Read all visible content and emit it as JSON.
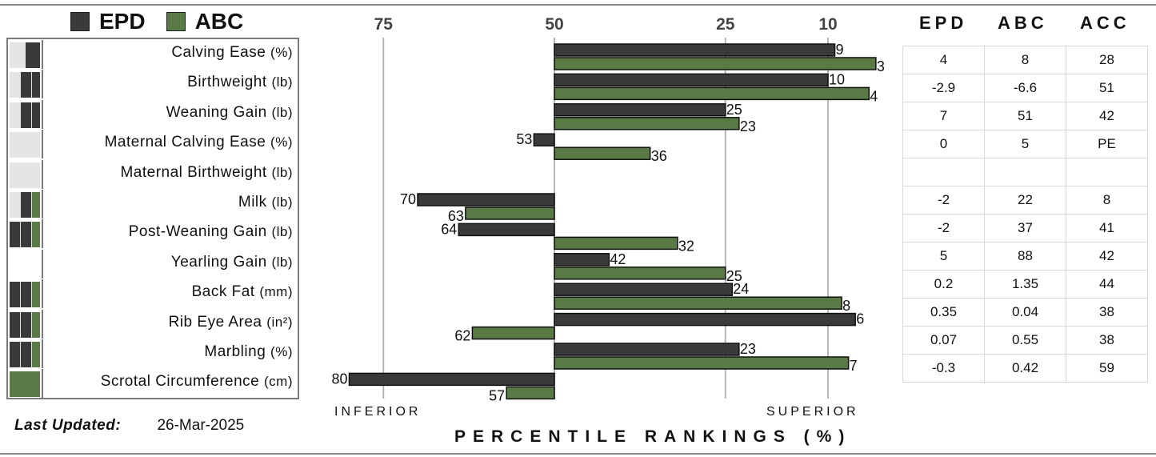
{
  "legend": [
    {
      "name": "EPD",
      "color": "#3a3a3a"
    },
    {
      "name": "ABC",
      "color": "#5a7a45"
    }
  ],
  "colors": {
    "epd": "#3a3a3a",
    "abc": "#5a7a45",
    "light": "#e4e4e4",
    "grid": "#b5b5b5"
  },
  "table": {
    "headers": [
      "EPD",
      "ABC",
      "ACC"
    ],
    "rows": [
      [
        "4",
        "8",
        "28"
      ],
      [
        "-2.9",
        "-6.6",
        "51"
      ],
      [
        "7",
        "51",
        "42"
      ],
      [
        "0",
        "5",
        "PE"
      ],
      [
        "",
        "",
        ""
      ],
      [
        "-2",
        "22",
        "8"
      ],
      [
        "-2",
        "37",
        "41"
      ],
      [
        "5",
        "88",
        "42"
      ],
      [
        "0.2",
        "1.35",
        "44"
      ],
      [
        "0.35",
        "0.04",
        "38"
      ],
      [
        "0.07",
        "0.55",
        "38"
      ],
      [
        "-0.3",
        "0.42",
        "59"
      ]
    ]
  },
  "last_updated": {
    "label": "Last Updated:",
    "value": "26-Mar-2025"
  },
  "axis": {
    "inferior": "INFERIOR",
    "superior": "SUPERIOR",
    "title": "PERCENTILE RANKINGS (%)"
  },
  "chart_data": {
    "type": "bar",
    "orientation": "horizontal",
    "title": "",
    "xlabel": "PERCENTILE RANKINGS (%)",
    "ticks": [
      75,
      50,
      25,
      10
    ],
    "baseline": 50,
    "categories": [
      {
        "name": "Calving Ease",
        "unit": "(%)",
        "mini": []
      },
      {
        "name": "Birthweight",
        "unit": "(lb)",
        "mini": []
      },
      {
        "name": "Weaning Gain",
        "unit": "(lb)",
        "mini": []
      },
      {
        "name": "Maternal Calving Ease",
        "unit": "(%)",
        "mini": []
      },
      {
        "name": "Maternal Birthweight",
        "unit": "(lb)",
        "mini": []
      },
      {
        "name": "Milk",
        "unit": "(lb)",
        "mini": []
      },
      {
        "name": "Post-Weaning Gain",
        "unit": "(lb)",
        "mini": []
      },
      {
        "name": "Yearling Gain",
        "unit": "(lb)",
        "mini": []
      },
      {
        "name": "Back Fat",
        "unit": "(mm)",
        "mini": []
      },
      {
        "name": "Rib Eye Area",
        "unit": "(in²)",
        "mini": []
      },
      {
        "name": "Marbling",
        "unit": "(%)",
        "mini": []
      },
      {
        "name": "Scrotal Circumference",
        "unit": "(cm)",
        "mini": []
      }
    ],
    "series": [
      {
        "name": "EPD",
        "values": [
          9,
          10,
          25,
          53,
          null,
          70,
          64,
          42,
          24,
          6,
          23,
          80
        ]
      },
      {
        "name": "ABC",
        "values": [
          3,
          4,
          23,
          36,
          null,
          63,
          32,
          25,
          8,
          62,
          7,
          57
        ]
      }
    ]
  }
}
